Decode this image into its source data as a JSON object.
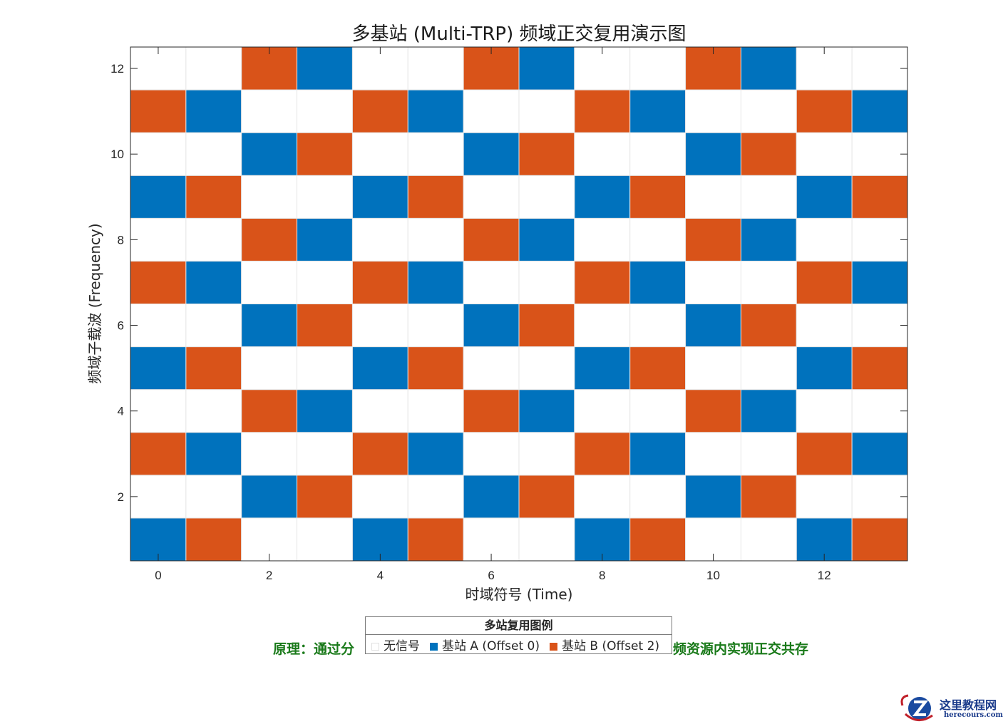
{
  "chart_data": {
    "type": "heatmap",
    "title": "多基站 (Multi-TRP) 频域正交复用演示图",
    "xlabel": "时域符号 (Time)",
    "ylabel": "频域子载波 (Frequency)",
    "xlim": [
      -0.5,
      13.5
    ],
    "ylim": [
      0.5,
      12.5
    ],
    "xticks": [
      0,
      2,
      4,
      6,
      8,
      10,
      12
    ],
    "yticks": [
      2,
      4,
      6,
      8,
      10,
      12
    ],
    "x": [
      0,
      1,
      2,
      3,
      4,
      5,
      6,
      7,
      8,
      9,
      10,
      11,
      12,
      13
    ],
    "y": [
      1,
      2,
      3,
      4,
      5,
      6,
      7,
      8,
      9,
      10,
      11,
      12
    ],
    "value_meaning": {
      "0": "无信号",
      "1": "基站 A (Offset 0)",
      "2": "基站 B (Offset 2)"
    },
    "colors": {
      "0": "#ffffff",
      "1": "#0072bd",
      "2": "#d95319"
    },
    "grid": true,
    "values": [
      [
        1,
        2,
        0,
        0,
        1,
        2,
        0,
        0,
        1,
        2,
        0,
        0,
        1,
        2
      ],
      [
        0,
        0,
        1,
        2,
        0,
        0,
        1,
        2,
        0,
        0,
        1,
        2,
        0,
        0
      ],
      [
        2,
        1,
        0,
        0,
        2,
        1,
        0,
        0,
        2,
        1,
        0,
        0,
        2,
        1
      ],
      [
        0,
        0,
        2,
        1,
        0,
        0,
        2,
        1,
        0,
        0,
        2,
        1,
        0,
        0
      ],
      [
        1,
        2,
        0,
        0,
        1,
        2,
        0,
        0,
        1,
        2,
        0,
        0,
        1,
        2
      ],
      [
        0,
        0,
        1,
        2,
        0,
        0,
        1,
        2,
        0,
        0,
        1,
        2,
        0,
        0
      ],
      [
        2,
        1,
        0,
        0,
        2,
        1,
        0,
        0,
        2,
        1,
        0,
        0,
        2,
        1
      ],
      [
        0,
        0,
        2,
        1,
        0,
        0,
        2,
        1,
        0,
        0,
        2,
        1,
        0,
        0
      ],
      [
        1,
        2,
        0,
        0,
        1,
        2,
        0,
        0,
        1,
        2,
        0,
        0,
        1,
        2
      ],
      [
        0,
        0,
        1,
        2,
        0,
        0,
        1,
        2,
        0,
        0,
        1,
        2,
        0,
        0
      ],
      [
        2,
        1,
        0,
        0,
        2,
        1,
        0,
        0,
        2,
        1,
        0,
        0,
        2,
        1
      ],
      [
        0,
        0,
        2,
        1,
        0,
        0,
        2,
        1,
        0,
        0,
        2,
        1,
        0,
        0
      ]
    ],
    "legend": {
      "title": "多站复用图例",
      "entries": [
        "无信号",
        "基站 A (Offset 0)",
        "基站 B (Offset 2)"
      ],
      "placement": "bottom-center"
    },
    "annotation_left": "原理：通过分",
    "annotation_right": "频资源内实现正交共存"
  },
  "watermark": {
    "text_cn": "这里教程网",
    "text_en": "herecours.com"
  }
}
